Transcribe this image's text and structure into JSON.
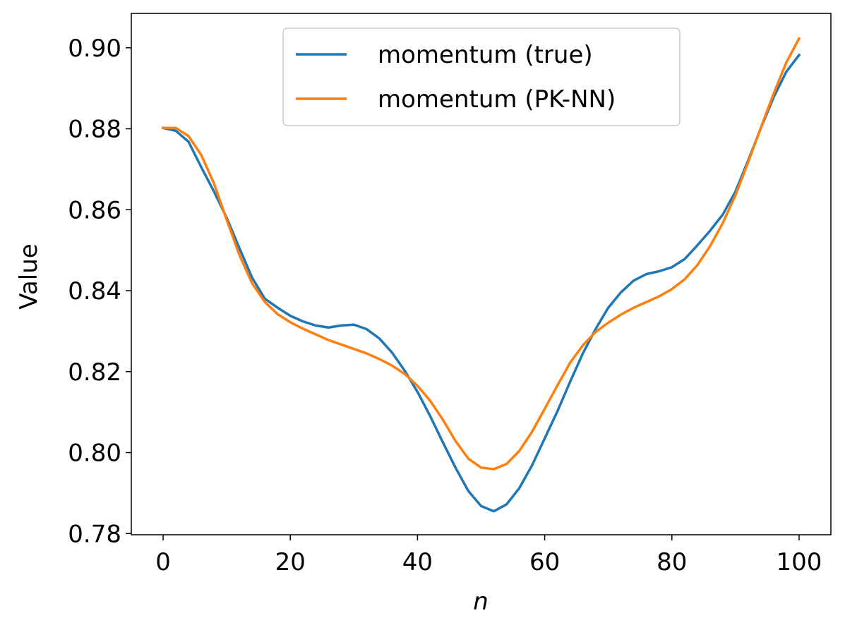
{
  "chart_data": {
    "type": "line",
    "title": "",
    "xlabel": "n",
    "ylabel": "Value",
    "xlim": [
      -5,
      105
    ],
    "ylim": [
      0.7797,
      0.9085
    ],
    "xticks": [
      0,
      20,
      40,
      60,
      80,
      100
    ],
    "xtick_labels": [
      "0",
      "20",
      "40",
      "60",
      "80",
      "100"
    ],
    "yticks": [
      0.78,
      0.8,
      0.82,
      0.84,
      0.86,
      0.88,
      0.9
    ],
    "ytick_labels": [
      "0.78",
      "0.80",
      "0.82",
      "0.84",
      "0.86",
      "0.88",
      "0.90"
    ],
    "grid": false,
    "legend_position": "upper center",
    "x": [
      0,
      2,
      4,
      6,
      8,
      10,
      12,
      14,
      16,
      18,
      20,
      22,
      24,
      26,
      28,
      30,
      32,
      34,
      36,
      38,
      40,
      42,
      44,
      46,
      48,
      50,
      52,
      54,
      56,
      58,
      60,
      62,
      64,
      66,
      68,
      70,
      72,
      74,
      76,
      78,
      80,
      82,
      84,
      86,
      88,
      90,
      92,
      94,
      96,
      98,
      100
    ],
    "series": [
      {
        "name": "momentum (true)",
        "color": "#1f77b4",
        "values": [
          0.8802,
          0.8795,
          0.8768,
          0.8705,
          0.8645,
          0.858,
          0.8505,
          0.8432,
          0.838,
          0.8358,
          0.8338,
          0.8324,
          0.8314,
          0.8309,
          0.8314,
          0.8316,
          0.8305,
          0.8282,
          0.8247,
          0.8202,
          0.815,
          0.809,
          0.8025,
          0.7962,
          0.7905,
          0.7868,
          0.7855,
          0.7872,
          0.7912,
          0.7968,
          0.8035,
          0.8102,
          0.8175,
          0.8245,
          0.8305,
          0.8358,
          0.8396,
          0.8425,
          0.8441,
          0.8448,
          0.8458,
          0.8478,
          0.8512,
          0.8548,
          0.8588,
          0.8645,
          0.8722,
          0.8802,
          0.8878,
          0.8941,
          0.8982
        ]
      },
      {
        "name": "momentum (PK-NN)",
        "color": "#ff7f0e",
        "values": [
          0.8802,
          0.8802,
          0.8782,
          0.8735,
          0.8665,
          0.8575,
          0.8488,
          0.8418,
          0.8372,
          0.8342,
          0.8322,
          0.8306,
          0.8292,
          0.8278,
          0.8267,
          0.8256,
          0.8245,
          0.8231,
          0.8215,
          0.8194,
          0.8165,
          0.8128,
          0.8081,
          0.8028,
          0.7985,
          0.7963,
          0.7959,
          0.7972,
          0.8004,
          0.8051,
          0.8108,
          0.8166,
          0.8222,
          0.8265,
          0.8298,
          0.8321,
          0.8341,
          0.8358,
          0.8372,
          0.8386,
          0.8404,
          0.8428,
          0.8463,
          0.851,
          0.8567,
          0.8636,
          0.8718,
          0.8803,
          0.8887,
          0.8964,
          0.9023
        ]
      }
    ]
  }
}
